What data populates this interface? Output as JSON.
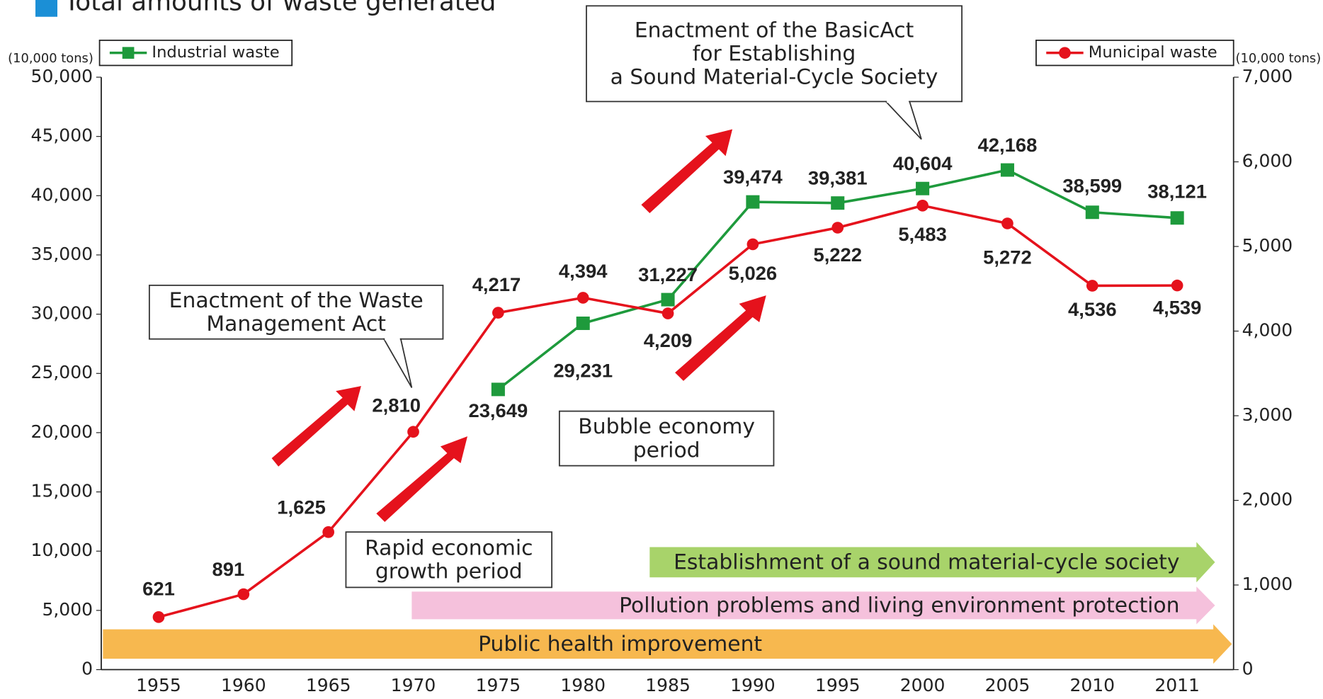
{
  "chart_data": {
    "type": "line",
    "title": "Total amounts of waste generated",
    "y_label": "(10,000 tons)",
    "y2_label": "(10,000 tons)",
    "categories": [
      "1955",
      "1960",
      "1965",
      "1970",
      "1975",
      "1980",
      "1985",
      "1990",
      "1995",
      "2000",
      "2005",
      "2010",
      "2011"
    ],
    "series": [
      {
        "name": "Industrial waste",
        "color": "#1e9a3c",
        "marker": "square",
        "values": [
          null,
          null,
          null,
          null,
          23649,
          29231,
          31227,
          39474,
          39381,
          40604,
          42168,
          38599,
          38121
        ],
        "value_labels": [
          null,
          null,
          null,
          null,
          "23,649",
          "29,231",
          "31,227",
          "39,474",
          "39,381",
          "40,604",
          "42,168",
          "38,599",
          "38,121"
        ]
      },
      {
        "name": "Municipal waste",
        "color": "#e5121c",
        "marker": "circle",
        "axis": "y2",
        "values": [
          621,
          891,
          1625,
          2810,
          4217,
          4394,
          4209,
          5026,
          5222,
          5483,
          5272,
          4536,
          4539
        ],
        "value_labels": [
          "621",
          "891",
          "1,625",
          "2,810",
          "4,217",
          "4,394",
          "4,209",
          "5,026",
          "5,222",
          "5,483",
          "5,272",
          "4,536",
          "4,539"
        ]
      }
    ],
    "ylim": [
      0,
      50000
    ],
    "yticks": [
      0,
      {
        "value": 5000,
        "label": "5,000"
      },
      {
        "value": 10000,
        "label": "10,000"
      },
      {
        "value": 15000,
        "label": "15,000"
      },
      {
        "value": 20000,
        "label": "20,000"
      },
      {
        "value": 25000,
        "label": "25,000"
      },
      {
        "value": 30000,
        "label": "30,000"
      },
      {
        "value": 35000,
        "label": "35,000"
      },
      {
        "value": 40000,
        "label": "40,000"
      },
      {
        "value": 45000,
        "label": "45,000"
      },
      {
        "value": 50000,
        "label": "50,000"
      }
    ],
    "y2lim": [
      0,
      7000
    ],
    "y2ticks": [
      0,
      {
        "value": 1000,
        "label": "1,000"
      },
      {
        "value": 2000,
        "label": "2,000"
      },
      {
        "value": 3000,
        "label": "3,000"
      },
      {
        "value": 4000,
        "label": "4,000"
      },
      {
        "value": 5000,
        "label": "5,000"
      },
      {
        "value": 6000,
        "label": "6,000"
      },
      {
        "value": 7000,
        "label": "7,000"
      }
    ],
    "grid": false,
    "annotations": [
      {
        "lines": [
          "Enactment of the BasicAct",
          "for Establishing",
          "a Sound Material-Cycle Society"
        ]
      },
      {
        "lines": [
          "Enactment of the Waste",
          "Management Act"
        ]
      },
      {
        "lines": [
          "Bubble economy",
          "period"
        ]
      },
      {
        "lines": [
          "Rapid economic",
          "growth period"
        ]
      }
    ],
    "periods": [
      {
        "text": "Establishment of a sound material-cycle society",
        "color": "#a8d36a"
      },
      {
        "text": "Pollution problems and living environment protection",
        "color": "#f5c1dc"
      },
      {
        "text": "Public health improvement",
        "color": "#f7b84f"
      }
    ]
  }
}
